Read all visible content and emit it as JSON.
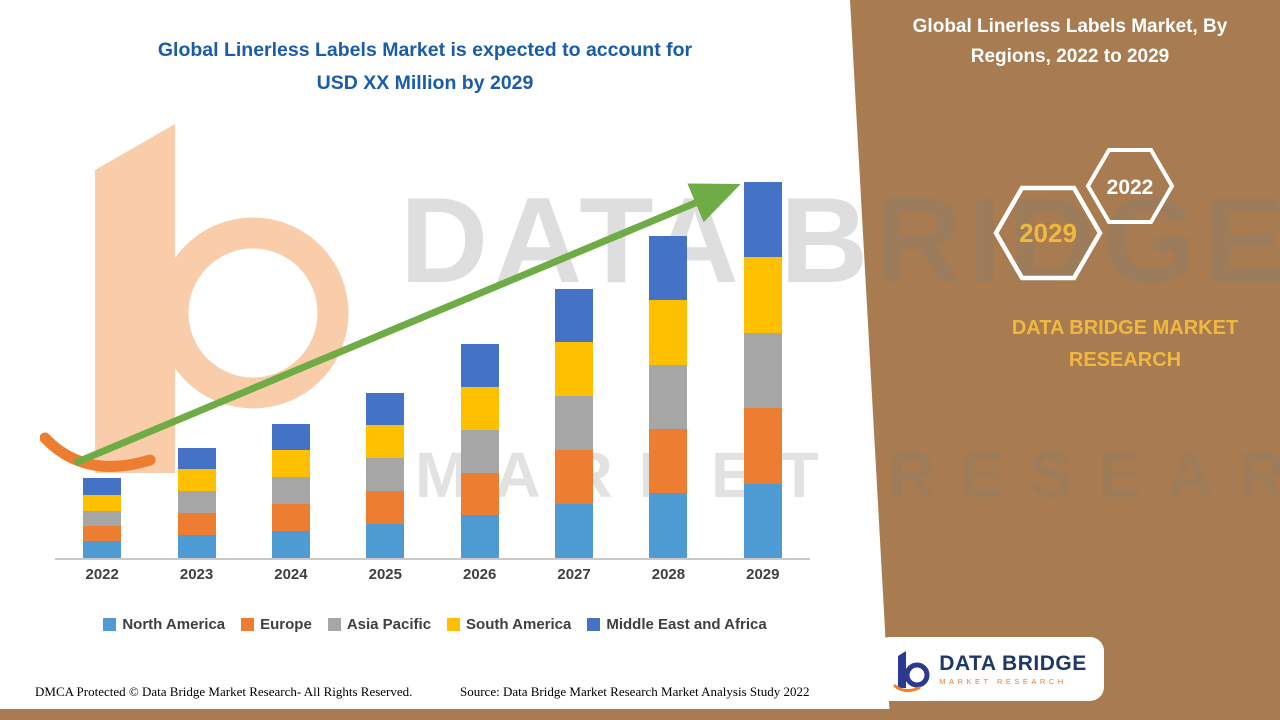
{
  "main": {
    "title_line1": "Global Linerless Labels Market is expected to account for",
    "title_line2": "USD XX Million by 2029"
  },
  "watermark": {
    "line1": "DATA BRIDGE",
    "line2": "MARKET RESEARCH"
  },
  "side_panel": {
    "title": "Global Linerless Labels Market, By Regions, 2022 to 2029",
    "hexagons": {
      "back_label": "2029",
      "front_label": "2022"
    },
    "brand_text": "DATA BRIDGE MARKET RESEARCH",
    "panel_color": "#A87C50",
    "accent_gold": "#EFB93F"
  },
  "logo_card": {
    "brand": "DATA BRIDGE",
    "tagline": "MARKET RESEARCH"
  },
  "footer": {
    "dmca": "DMCA Protected © Data Bridge Market Research- All Rights Reserved.",
    "source": "Source: Data Bridge Market Research Market Analysis Study 2022"
  },
  "chart_data": {
    "type": "bar",
    "stacked": true,
    "title": "Global Linerless Labels Market is expected to account for USD XX Million by 2029",
    "value_note": "Actual values undisclosed (USD XX Million); series values are relative estimates read from bar heights, 2029 total = 100",
    "categories": [
      "2022",
      "2023",
      "2024",
      "2025",
      "2026",
      "2027",
      "2028",
      "2029"
    ],
    "series": [
      {
        "name": "North America",
        "color": "#4E9BD4",
        "values": [
          4.5,
          6.0,
          7.3,
          9.0,
          11.5,
          14.4,
          17.3,
          19.8
        ]
      },
      {
        "name": "Europe",
        "color": "#ED7D31",
        "values": [
          4.1,
          5.8,
          7.2,
          8.7,
          11.3,
          14.3,
          17.1,
          20.1
        ]
      },
      {
        "name": "Asia Pacific",
        "color": "#A6A6A6",
        "values": [
          4.0,
          5.8,
          7.2,
          8.7,
          11.4,
          14.3,
          17.1,
          20.0
        ]
      },
      {
        "name": "South America",
        "color": "#FFC000",
        "values": [
          4.3,
          5.9,
          7.3,
          8.8,
          11.4,
          14.3,
          17.2,
          20.1
        ]
      },
      {
        "name": "Middle East and Africa",
        "color": "#4472C4",
        "values": [
          4.4,
          5.7,
          7.0,
          8.5,
          11.4,
          14.1,
          17.0,
          20.0
        ]
      }
    ],
    "xlabel": "",
    "ylabel": "",
    "ylim": [
      0,
      100
    ],
    "grid": false,
    "legend_position": "bottom",
    "trend_arrow": {
      "present": true,
      "color": "#6FAC46",
      "direction": "up-right"
    }
  }
}
